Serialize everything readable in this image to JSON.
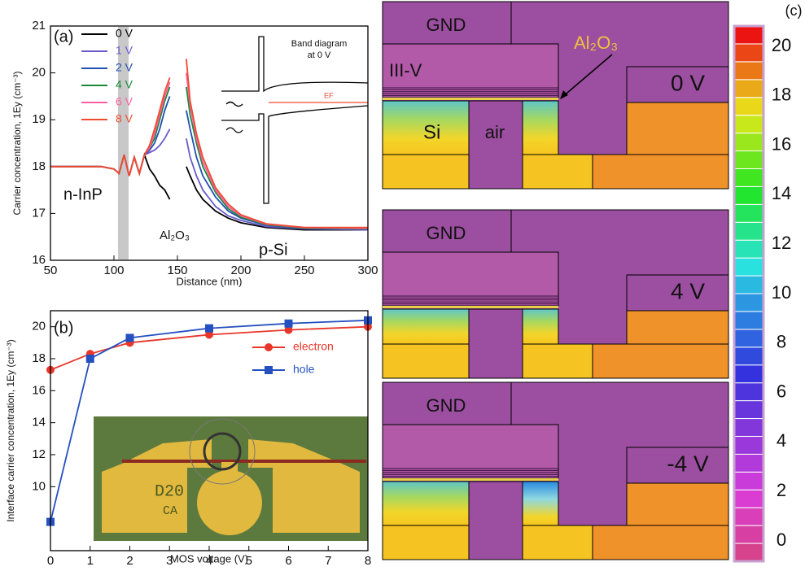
{
  "chart_data": [
    {
      "type": "line",
      "panel_label": "(a)",
      "x_label": "Distance (nm)",
      "y_label": "Carrier concentration, 1Ey (cm⁻³)",
      "x": [
        50,
        90,
        100,
        104,
        108,
        112,
        116,
        120,
        124,
        128,
        132,
        136,
        140,
        144,
        150,
        157,
        160,
        165,
        170,
        180,
        190,
        200,
        220,
        250,
        300
      ],
      "series": [
        {
          "name": "0 V",
          "color": "#000000",
          "values": [
            18,
            18,
            17.95,
            17.85,
            18.25,
            17.8,
            18.2,
            17.85,
            18.25,
            17.95,
            17.8,
            17.6,
            17.5,
            17.3,
            null,
            18.0,
            17.8,
            17.5,
            17.3,
            17.05,
            16.9,
            16.8,
            16.7,
            16.65,
            16.65
          ]
        },
        {
          "name": "1 V",
          "color": "#6a5acd",
          "values": [
            18,
            18,
            17.95,
            17.85,
            18.25,
            17.8,
            18.2,
            17.85,
            18.25,
            18.3,
            18.35,
            18.45,
            18.6,
            18.8,
            null,
            18.6,
            18.2,
            17.8,
            17.5,
            17.15,
            16.95,
            16.85,
            16.72,
            16.67,
            16.65
          ]
        },
        {
          "name": "2 V",
          "color": "#2050b0",
          "values": [
            18,
            18,
            17.95,
            17.85,
            18.25,
            17.8,
            18.2,
            17.85,
            18.25,
            18.35,
            18.5,
            18.8,
            19.2,
            19.5,
            null,
            19.2,
            18.8,
            18.2,
            17.8,
            17.35,
            17.05,
            16.9,
            16.75,
            16.68,
            16.66
          ]
        },
        {
          "name": "4 V",
          "color": "#1a8a3a",
          "values": [
            18,
            18,
            17.95,
            17.85,
            18.25,
            17.8,
            18.2,
            17.85,
            18.25,
            18.4,
            18.6,
            19.0,
            19.4,
            19.7,
            null,
            19.7,
            19.1,
            18.5,
            18.0,
            17.45,
            17.1,
            16.92,
            16.76,
            16.69,
            16.67
          ]
        },
        {
          "name": "6 V",
          "color": "#ff5fa0",
          "values": [
            18,
            18,
            17.95,
            17.85,
            18.25,
            17.8,
            18.2,
            17.85,
            18.25,
            18.4,
            18.7,
            19.1,
            19.5,
            19.8,
            null,
            20.0,
            19.3,
            18.6,
            18.1,
            17.5,
            17.15,
            16.95,
            16.77,
            16.7,
            16.68
          ]
        },
        {
          "name": "8 V",
          "color": "#f04a30",
          "values": [
            18,
            18,
            17.95,
            17.85,
            18.25,
            17.8,
            18.2,
            17.85,
            18.25,
            18.45,
            18.8,
            19.2,
            19.6,
            19.9,
            null,
            20.3,
            19.4,
            18.7,
            18.2,
            17.55,
            17.2,
            16.97,
            16.78,
            16.7,
            16.7
          ]
        }
      ],
      "xlim": [
        50,
        300
      ],
      "xticks": [
        50,
        100,
        150,
        200,
        250,
        300
      ],
      "ylim": [
        16,
        21
      ],
      "yticks": [
        16,
        17,
        18,
        19,
        20,
        21
      ],
      "annotations": [
        "n-InP",
        "p-Si",
        "Al₂O₃"
      ],
      "inset": {
        "title": [
          "Band diagram",
          "at 0 V"
        ],
        "fermi_label": "EF"
      }
    },
    {
      "type": "line",
      "panel_label": "(b)",
      "x_label": "MOS voltage (V)",
      "y_label": "Interface carrier concentration, 1Ey (cm⁻³)",
      "x": [
        0,
        1,
        2,
        4,
        6,
        8
      ],
      "series": [
        {
          "name": "electron",
          "color": "#e8372a",
          "marker": "circle",
          "values": [
            17.3,
            18.3,
            19.0,
            19.5,
            19.8,
            20.0
          ]
        },
        {
          "name": "hole",
          "color": "#2450c0",
          "marker": "square",
          "values": [
            7.8,
            18.0,
            19.3,
            19.9,
            20.2,
            20.4
          ]
        }
      ],
      "xlim": [
        0,
        8
      ],
      "xticks": [
        0,
        1,
        2,
        3,
        4,
        5,
        6,
        7,
        8
      ],
      "ylim": [
        6,
        21
      ],
      "yticks": [
        10,
        12,
        14,
        16,
        18,
        20
      ],
      "inset_photo": {
        "labels": [
          "D20",
          "CA"
        ]
      }
    }
  ],
  "panel_c": {
    "panel_label": "(c)",
    "blocks": [
      {
        "gnd": "GND",
        "voltage": "0 V"
      },
      {
        "gnd": "GND",
        "voltage": "4 V"
      },
      {
        "gnd": "GND",
        "voltage": "-4 V"
      }
    ],
    "labels": {
      "iii_v": "III-V",
      "al2o3": "Al₂O₃",
      "si": "Si",
      "air": "air"
    },
    "colorbar_ticks": [
      0,
      2,
      4,
      6,
      8,
      10,
      12,
      14,
      16,
      18,
      20
    ]
  }
}
